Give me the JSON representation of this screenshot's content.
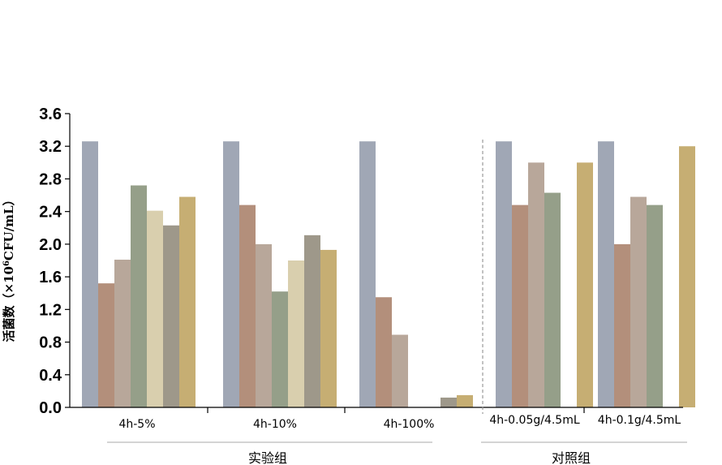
{
  "chart_data": {
    "type": "bar",
    "ylabel": {
      "prefix": "活菌数（×10",
      "superscript": "6",
      "suffix": "CFU/mL）"
    },
    "ylim": [
      0,
      3.6
    ],
    "yticks": [
      "0.0",
      "0.4",
      "0.8",
      "1.2",
      "1.6",
      "2.0",
      "2.4",
      "2.8",
      "3.2",
      "3.6"
    ],
    "categories": [
      "4h-5%",
      "4h-10%",
      "4h-100%",
      "4h-0.05g/4.5mL",
      "4h-0.1g/4.5mL"
    ],
    "groups": [
      {
        "label": "实验组",
        "categories": [
          "4h-5%",
          "4h-10%",
          "4h-100%"
        ]
      },
      {
        "label": "对照组",
        "categories": [
          "4h-0.05g/4.5mL",
          "4h-0.1g/4.5mL"
        ]
      }
    ],
    "series_colors": [
      "#a0a7b5",
      "#b38f7b",
      "#b8a79a",
      "#959f89",
      "#d9cfae",
      "#9e988a",
      "#c6ae73"
    ],
    "bars": [
      [
        3.26,
        1.52,
        1.81,
        2.72,
        2.41,
        2.23,
        2.58
      ],
      [
        3.26,
        2.48,
        2.0,
        1.42,
        1.8,
        2.11,
        1.93
      ],
      [
        3.26,
        1.35,
        0.89,
        0.0,
        0.0,
        0.12,
        0.15
      ],
      [
        3.26,
        2.48,
        3.0,
        2.63,
        0,
        3.0
      ],
      [
        3.26,
        2.0,
        2.58,
        2.48,
        0,
        3.2
      ]
    ],
    "bar_series_index": [
      [
        0,
        1,
        2,
        3,
        4,
        5,
        6
      ],
      [
        0,
        1,
        2,
        3,
        4,
        5,
        6
      ],
      [
        0,
        1,
        2,
        3,
        4,
        5,
        6
      ],
      [
        0,
        1,
        2,
        3,
        -1,
        6
      ],
      [
        0,
        1,
        2,
        3,
        -1,
        6
      ]
    ],
    "grid": false,
    "separator": "dashed vertical line between 实验组 and 对照组"
  }
}
